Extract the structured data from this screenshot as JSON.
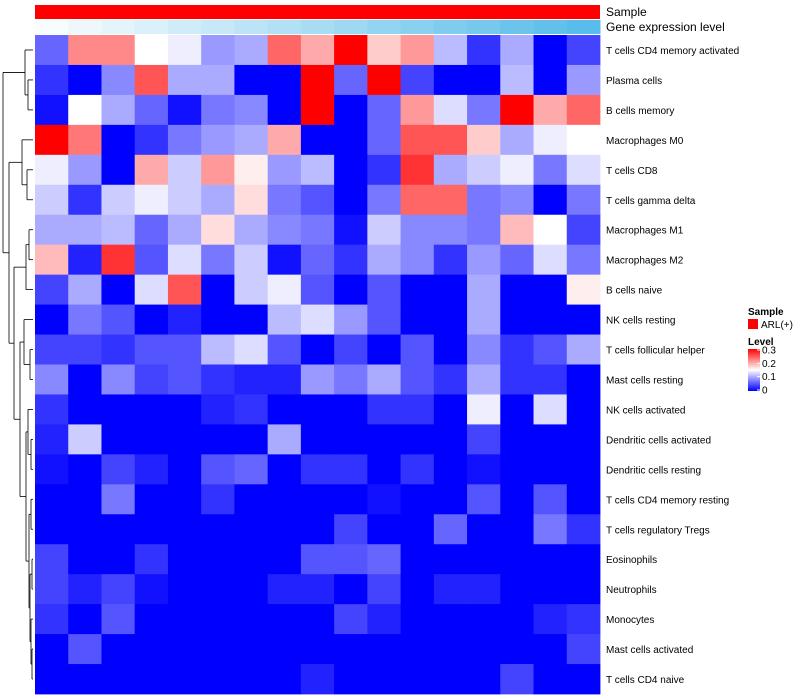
{
  "chart_data": {
    "type": "heatmap",
    "annotation_tracks": [
      {
        "name": "Sample",
        "color": "#ff0000"
      },
      {
        "name": "Gene expression level",
        "colors": [
          "#f7fcfe",
          "#eef8fc",
          "#e4f4fb",
          "#daf0fa",
          "#d0ecf8",
          "#c6e8f7",
          "#bce4f6",
          "#b2e0f4",
          "#a8dcf3",
          "#9ed8f2",
          "#94d4f1",
          "#8ad0f0",
          "#80ccee",
          "#76c8ed",
          "#6cc4ec",
          "#62c0eb",
          "#58bdea"
        ]
      }
    ],
    "rows": [
      "T cells CD4 memory activated",
      "Plasma cells",
      "B cells memory",
      "Macrophages M0",
      "T cells CD8",
      "T cells gamma delta",
      "Macrophages M1",
      "Macrophages M2",
      "B cells naive",
      "NK cells resting",
      "T cells follicular helper",
      "Mast cells resting",
      "NK cells activated",
      "Dendritic cells activated",
      "Dendritic cells resting",
      "T cells CD4 memory resting",
      "T cells regulatory  Tregs",
      "Eosinophils",
      "Neutrophils",
      "Monocytes",
      "Mast cells activated",
      "T cells CD4 naive"
    ],
    "values": [
      [
        0.06,
        0.22,
        0.22,
        0.15,
        0.14,
        0.09,
        0.1,
        0.24,
        0.2,
        0.33,
        0.18,
        0.21,
        0.11,
        0.03,
        0.1,
        0.0,
        0.04
      ],
      [
        0.03,
        0.0,
        0.08,
        0.25,
        0.1,
        0.1,
        0.0,
        0.0,
        0.31,
        0.06,
        0.32,
        0.04,
        0.0,
        0.0,
        0.11,
        0.0,
        0.09
      ],
      [
        0.01,
        0.15,
        0.1,
        0.06,
        0.01,
        0.07,
        0.08,
        0.0,
        0.33,
        0.0,
        0.06,
        0.21,
        0.13,
        0.07,
        0.33,
        0.2,
        0.24
      ],
      [
        0.31,
        0.23,
        0.0,
        0.03,
        0.07,
        0.09,
        0.1,
        0.2,
        0.0,
        0.0,
        0.06,
        0.25,
        0.25,
        0.18,
        0.1,
        0.14,
        0.15
      ],
      [
        0.14,
        0.09,
        0.0,
        0.2,
        0.12,
        0.21,
        0.16,
        0.09,
        0.11,
        0.0,
        0.03,
        0.27,
        0.1,
        0.12,
        0.14,
        0.07,
        0.13
      ],
      [
        0.12,
        0.03,
        0.12,
        0.14,
        0.12,
        0.1,
        0.17,
        0.07,
        0.05,
        0.0,
        0.07,
        0.24,
        0.24,
        0.07,
        0.08,
        0.0,
        0.07
      ],
      [
        0.1,
        0.1,
        0.11,
        0.06,
        0.1,
        0.17,
        0.1,
        0.08,
        0.07,
        0.01,
        0.12,
        0.08,
        0.08,
        0.07,
        0.19,
        0.15,
        0.04
      ],
      [
        0.19,
        0.02,
        0.27,
        0.05,
        0.13,
        0.07,
        0.12,
        0.01,
        0.06,
        0.03,
        0.1,
        0.08,
        0.03,
        0.09,
        0.06,
        0.13,
        0.07
      ],
      [
        0.04,
        0.1,
        0.0,
        0.13,
        0.25,
        0.0,
        0.12,
        0.14,
        0.05,
        0.0,
        0.05,
        0.0,
        0.0,
        0.1,
        0.0,
        0.0,
        0.16
      ],
      [
        0.0,
        0.07,
        0.05,
        0.0,
        0.02,
        0.0,
        0.0,
        0.11,
        0.13,
        0.09,
        0.05,
        0.0,
        0.0,
        0.1,
        0.0,
        0.0,
        0.0
      ],
      [
        0.04,
        0.04,
        0.03,
        0.05,
        0.05,
        0.11,
        0.13,
        0.05,
        0.0,
        0.04,
        0.0,
        0.05,
        0.0,
        0.08,
        0.03,
        0.05,
        0.1
      ],
      [
        0.08,
        0.0,
        0.08,
        0.04,
        0.05,
        0.03,
        0.02,
        0.02,
        0.09,
        0.07,
        0.1,
        0.05,
        0.03,
        0.1,
        0.03,
        0.03,
        0.0
      ],
      [
        0.03,
        0.0,
        0.0,
        0.0,
        0.0,
        0.02,
        0.03,
        0.0,
        0.0,
        0.0,
        0.03,
        0.03,
        0.0,
        0.14,
        0.0,
        0.13,
        0.0
      ],
      [
        0.02,
        0.12,
        0.0,
        0.0,
        0.0,
        0.0,
        0.0,
        0.1,
        0.0,
        0.0,
        0.0,
        0.0,
        0.0,
        0.04,
        0.0,
        0.0,
        0.0
      ],
      [
        0.01,
        0.0,
        0.04,
        0.02,
        0.0,
        0.05,
        0.06,
        0.0,
        0.03,
        0.03,
        0.0,
        0.03,
        0.0,
        0.01,
        0.0,
        0.0,
        0.0
      ],
      [
        0.0,
        0.0,
        0.07,
        0.0,
        0.0,
        0.03,
        0.0,
        0.0,
        0.0,
        0.0,
        0.01,
        0.0,
        0.0,
        0.05,
        0.0,
        0.05,
        0.0
      ],
      [
        0.0,
        0.0,
        0.0,
        0.0,
        0.0,
        0.0,
        0.0,
        0.0,
        0.0,
        0.04,
        0.0,
        0.0,
        0.06,
        0.0,
        0.0,
        0.07,
        0.03
      ],
      [
        0.04,
        0.0,
        0.0,
        0.03,
        0.0,
        0.0,
        0.0,
        0.0,
        0.05,
        0.05,
        0.06,
        0.0,
        0.0,
        0.0,
        0.0,
        0.0,
        0.0
      ],
      [
        0.04,
        0.02,
        0.04,
        0.01,
        0.0,
        0.0,
        0.0,
        0.02,
        0.02,
        0.0,
        0.04,
        0.0,
        0.02,
        0.02,
        0.0,
        0.0,
        0.0
      ],
      [
        0.03,
        0.0,
        0.05,
        0.0,
        0.0,
        0.0,
        0.0,
        0.0,
        0.0,
        0.04,
        0.02,
        0.0,
        0.0,
        0.0,
        0.0,
        0.02,
        0.03
      ],
      [
        0.0,
        0.05,
        0.0,
        0.0,
        0.0,
        0.0,
        0.0,
        0.0,
        0.0,
        0.0,
        0.0,
        0.0,
        0.0,
        0.0,
        0.0,
        0.0,
        0.04
      ],
      [
        0.0,
        0.0,
        0.0,
        0.0,
        0.0,
        0.0,
        0.0,
        0.0,
        0.02,
        0.0,
        0.0,
        0.0,
        0.0,
        0.0,
        0.04,
        0.0,
        0.0
      ]
    ],
    "color_scale": {
      "low": "#0000ff",
      "mid": "#ffffff",
      "high": "#ff0000",
      "range": [
        0,
        0.3
      ],
      "midpoint": 0.15
    },
    "legend": {
      "sample_title": "Sample",
      "sample_label": "ARL(+)",
      "sample_color": "#ff0000",
      "level_title": "Level",
      "level_ticks": [
        "0.3",
        "0.2",
        "0.1",
        "0"
      ]
    },
    "dendrogram": true,
    "legend_position": "right"
  }
}
